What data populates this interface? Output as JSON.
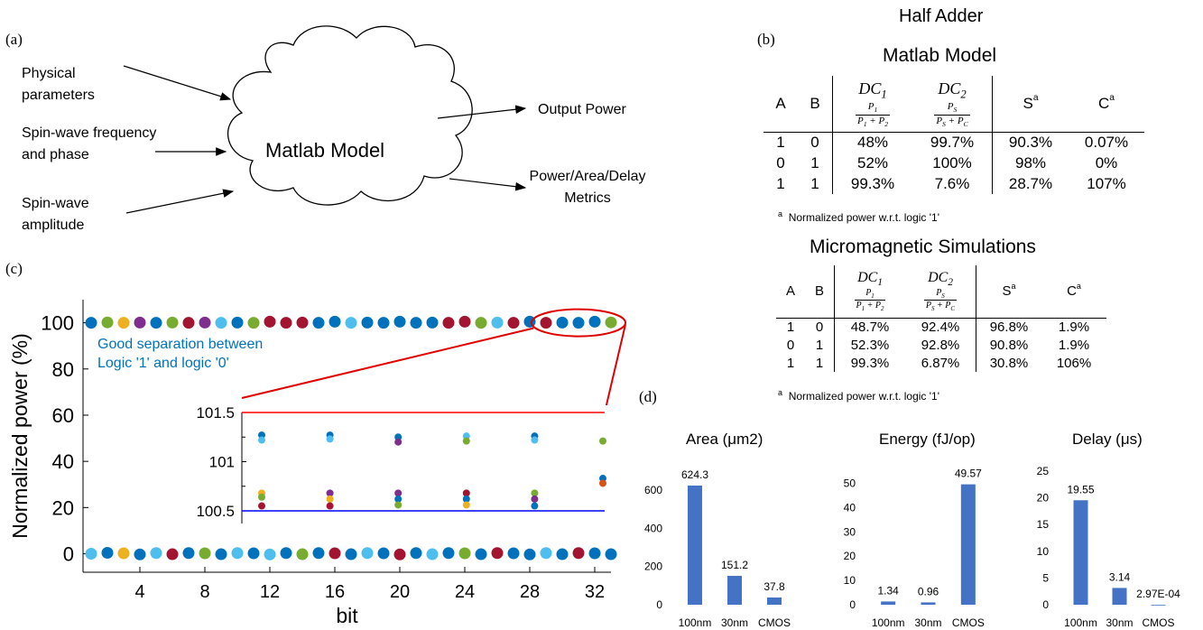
{
  "panels": {
    "a": "(a)",
    "b": "(b)",
    "c": "(c)",
    "d": "(d)"
  },
  "flow": {
    "inputs": [
      "Physical parameters",
      "Spin-wave frequency and phase",
      "Spin-wave amplitude"
    ],
    "input_lines": [
      [
        "Physical",
        "parameters"
      ],
      [
        "Spin-wave frequency",
        "and phase"
      ],
      [
        "Spin-wave",
        "amplitude"
      ]
    ],
    "center": "Matlab Model",
    "outputs": [
      "Output Power",
      "Power/Area/Delay Metrics"
    ],
    "output_lines": [
      [
        "Output Power"
      ],
      [
        "Power/Area/Delay",
        "Metrics"
      ]
    ]
  },
  "tables": {
    "header": "Half Adder",
    "matlab": {
      "title": "Matlab Model",
      "cols": [
        "A",
        "B",
        "DC",
        "DC",
        "S",
        "C"
      ],
      "sup": "a",
      "rows": [
        [
          "1",
          "0",
          "48%",
          "99.7%",
          "90.3%",
          "0.07%"
        ],
        [
          "0",
          "1",
          "52%",
          "100%",
          "98%",
          "0%"
        ],
        [
          "1",
          "1",
          "99.3%",
          "7.6%",
          "28.7%",
          "107%"
        ]
      ],
      "footnote": "Normalized power w.r.t. logic '1'"
    },
    "micromag": {
      "title": "Micromagnetic Simulations",
      "cols": [
        "A",
        "B",
        "DC",
        "DC",
        "S",
        "C"
      ],
      "sup": "a",
      "rows": [
        [
          "1",
          "0",
          "48.7%",
          "92.4%",
          "96.8%",
          "1.9%"
        ],
        [
          "0",
          "1",
          "52.3%",
          "92.8%",
          "90.8%",
          "1.9%"
        ],
        [
          "1",
          "1",
          "99.3%",
          "6.87%",
          "30.8%",
          "106%"
        ]
      ],
      "footnote": "Normalized power w.r.t. logic '1'"
    }
  },
  "chart_data": [
    {
      "type": "scatter",
      "xlabel": "bit",
      "ylabel": "Normalized power (%)",
      "xlim": [
        0.5,
        33
      ],
      "ylim": [
        -8,
        110
      ],
      "xticks": [
        4,
        8,
        12,
        16,
        20,
        24,
        28,
        32
      ],
      "yticks": [
        0,
        20,
        40,
        60,
        80,
        100
      ],
      "annotation": "Good separation between Logic '1' and logic '0'",
      "annotation_lines": [
        "Good separation between",
        "Logic '1' and logic '0'"
      ],
      "annotation_color": "#0072BD",
      "palette": [
        "#0072BD",
        "#D95319",
        "#EDB120",
        "#7E2F8E",
        "#77AC30",
        "#4DBEEE",
        "#A2142F"
      ],
      "high_points": [
        {
          "x": 1,
          "y": 100.6,
          "c": "#0072BD"
        },
        {
          "x": 2,
          "y": 100.8,
          "c": "#77AC30"
        },
        {
          "x": 3,
          "y": 100.6,
          "c": "#EDB120"
        },
        {
          "x": 4,
          "y": 100.7,
          "c": "#7E2F8E"
        },
        {
          "x": 5,
          "y": 100.6,
          "c": "#0072BD"
        },
        {
          "x": 6,
          "y": 100.7,
          "c": "#77AC30"
        },
        {
          "x": 7,
          "y": 100.6,
          "c": "#A2142F"
        },
        {
          "x": 8,
          "y": 100.7,
          "c": "#7E2F8E"
        },
        {
          "x": 9,
          "y": 100.6,
          "c": "#4DBEEE"
        },
        {
          "x": 10,
          "y": 100.7,
          "c": "#0072BD"
        },
        {
          "x": 11,
          "y": 100.6,
          "c": "#77AC30"
        },
        {
          "x": 12,
          "y": 101.2,
          "c": "#A2142F"
        },
        {
          "x": 13,
          "y": 100.6,
          "c": "#A2142F"
        },
        {
          "x": 14,
          "y": 100.7,
          "c": "#A2142F"
        },
        {
          "x": 15,
          "y": 100.6,
          "c": "#0072BD"
        },
        {
          "x": 16,
          "y": 101.2,
          "c": "#0072BD"
        },
        {
          "x": 17,
          "y": 100.6,
          "c": "#4DBEEE"
        },
        {
          "x": 18,
          "y": 100.7,
          "c": "#0072BD"
        },
        {
          "x": 19,
          "y": 100.6,
          "c": "#0072BD"
        },
        {
          "x": 20,
          "y": 101.2,
          "c": "#0072BD"
        },
        {
          "x": 21,
          "y": 100.6,
          "c": "#0072BD"
        },
        {
          "x": 22,
          "y": 100.7,
          "c": "#0072BD"
        },
        {
          "x": 23,
          "y": 100.6,
          "c": "#A2142F"
        },
        {
          "x": 24,
          "y": 101.2,
          "c": "#A2142F"
        },
        {
          "x": 25,
          "y": 100.6,
          "c": "#77AC30"
        },
        {
          "x": 26,
          "y": 100.7,
          "c": "#4DBEEE"
        },
        {
          "x": 27,
          "y": 100.6,
          "c": "#A2142F"
        },
        {
          "x": 28,
          "y": 101.2,
          "c": "#0072BD"
        },
        {
          "x": 29,
          "y": 100.6,
          "c": "#A2142F"
        },
        {
          "x": 30,
          "y": 100.7,
          "c": "#0072BD"
        },
        {
          "x": 31,
          "y": 100.6,
          "c": "#0072BD"
        },
        {
          "x": 32,
          "y": 101.2,
          "c": "#0072BD"
        },
        {
          "x": 33,
          "y": 100.8,
          "c": "#77AC30"
        }
      ],
      "low_points": [
        {
          "x": 1,
          "y": 0,
          "c": "#4DBEEE"
        },
        {
          "x": 2,
          "y": 0.4,
          "c": "#0072BD"
        },
        {
          "x": 3,
          "y": 0.2,
          "c": "#EDB120"
        },
        {
          "x": 4,
          "y": -0.3,
          "c": "#0072BD"
        },
        {
          "x": 5,
          "y": 0.3,
          "c": "#4DBEEE"
        },
        {
          "x": 6,
          "y": -0.2,
          "c": "#A2142F"
        },
        {
          "x": 7,
          "y": 0.3,
          "c": "#0072BD"
        },
        {
          "x": 8,
          "y": 0.2,
          "c": "#77AC30"
        },
        {
          "x": 9,
          "y": -0.2,
          "c": "#0072BD"
        },
        {
          "x": 10,
          "y": 0.3,
          "c": "#4DBEEE"
        },
        {
          "x": 11,
          "y": 0.2,
          "c": "#0072BD"
        },
        {
          "x": 12,
          "y": -0.3,
          "c": "#4DBEEE"
        },
        {
          "x": 13,
          "y": 0.3,
          "c": "#0072BD"
        },
        {
          "x": 14,
          "y": -0.2,
          "c": "#77AC30"
        },
        {
          "x": 15,
          "y": 0.3,
          "c": "#0072BD"
        },
        {
          "x": 16,
          "y": 0.2,
          "c": "#A2142F"
        },
        {
          "x": 17,
          "y": -0.2,
          "c": "#0072BD"
        },
        {
          "x": 18,
          "y": 0.3,
          "c": "#4DBEEE"
        },
        {
          "x": 19,
          "y": 0.2,
          "c": "#0072BD"
        },
        {
          "x": 20,
          "y": -0.3,
          "c": "#A2142F"
        },
        {
          "x": 21,
          "y": 0.3,
          "c": "#0072BD"
        },
        {
          "x": 22,
          "y": -0.2,
          "c": "#4DBEEE"
        },
        {
          "x": 23,
          "y": 0.3,
          "c": "#0072BD"
        },
        {
          "x": 24,
          "y": 0.2,
          "c": "#77AC30"
        },
        {
          "x": 25,
          "y": -0.2,
          "c": "#0072BD"
        },
        {
          "x": 26,
          "y": 0.3,
          "c": "#A2142F"
        },
        {
          "x": 27,
          "y": 0.2,
          "c": "#0072BD"
        },
        {
          "x": 28,
          "y": -0.3,
          "c": "#0072BD"
        },
        {
          "x": 29,
          "y": 0.3,
          "c": "#4DBEEE"
        },
        {
          "x": 30,
          "y": -0.2,
          "c": "#0072BD"
        },
        {
          "x": 31,
          "y": 0.3,
          "c": "#A2142F"
        },
        {
          "x": 32,
          "y": 0.2,
          "c": "#0072BD"
        },
        {
          "x": 33,
          "y": -0.2,
          "c": "#0072BD"
        }
      ]
    },
    {
      "type": "scatter",
      "role": "inset",
      "ylim": [
        100.5,
        101.5
      ],
      "yticks": [
        100.5,
        101,
        101.5
      ],
      "ytick_labels": [
        "100.5",
        "101",
        "101.5"
      ],
      "upper_line": {
        "y": 101.5,
        "color": "#FF0000"
      },
      "lower_line": {
        "y": 100.5,
        "color": "#0000FF"
      },
      "points": [
        {
          "x": 0,
          "y": 101.27,
          "c": "#0072BD"
        },
        {
          "x": 0,
          "y": 101.22,
          "c": "#4DBEEE"
        },
        {
          "x": 0,
          "y": 100.68,
          "c": "#EDB120"
        },
        {
          "x": 0,
          "y": 100.64,
          "c": "#77AC30"
        },
        {
          "x": 0,
          "y": 100.55,
          "c": "#A2142F"
        },
        {
          "x": 1,
          "y": 101.27,
          "c": "#0072BD"
        },
        {
          "x": 1,
          "y": 101.23,
          "c": "#4DBEEE"
        },
        {
          "x": 1,
          "y": 100.68,
          "c": "#7E2F8E"
        },
        {
          "x": 1,
          "y": 100.62,
          "c": "#EDB120"
        },
        {
          "x": 1,
          "y": 100.55,
          "c": "#A2142F"
        },
        {
          "x": 2,
          "y": 101.25,
          "c": "#0072BD"
        },
        {
          "x": 2,
          "y": 101.2,
          "c": "#7E2F8E"
        },
        {
          "x": 2,
          "y": 100.68,
          "c": "#7E2F8E"
        },
        {
          "x": 2,
          "y": 100.62,
          "c": "#0072BD"
        },
        {
          "x": 2,
          "y": 100.56,
          "c": "#77AC30"
        },
        {
          "x": 3,
          "y": 101.26,
          "c": "#4DBEEE"
        },
        {
          "x": 3,
          "y": 101.21,
          "c": "#77AC30"
        },
        {
          "x": 3,
          "y": 100.68,
          "c": "#A2142F"
        },
        {
          "x": 3,
          "y": 100.62,
          "c": "#0072BD"
        },
        {
          "x": 3,
          "y": 100.56,
          "c": "#EDB120"
        },
        {
          "x": 4,
          "y": 101.26,
          "c": "#0072BD"
        },
        {
          "x": 4,
          "y": 101.22,
          "c": "#4DBEEE"
        },
        {
          "x": 4,
          "y": 100.68,
          "c": "#77AC30"
        },
        {
          "x": 4,
          "y": 100.62,
          "c": "#7E2F8E"
        },
        {
          "x": 4,
          "y": 100.55,
          "c": "#0072BD"
        },
        {
          "x": 5,
          "y": 101.21,
          "c": "#77AC30"
        },
        {
          "x": 5,
          "y": 100.83,
          "c": "#0072BD"
        },
        {
          "x": 5,
          "y": 100.78,
          "c": "#D95319"
        }
      ]
    },
    {
      "type": "bar",
      "title": "Area (μm2)",
      "categories": [
        "100nm",
        "30nm",
        "CMOS"
      ],
      "values": [
        624.3,
        151.2,
        37.8
      ],
      "value_labels": [
        "624.3",
        "151.2",
        "37.8"
      ],
      "ylim": [
        0,
        700
      ],
      "yticks": [
        0,
        200,
        400,
        600
      ],
      "color": "#4472C4"
    },
    {
      "type": "bar",
      "title": "Energy (fJ/op)",
      "categories": [
        "100nm",
        "30nm",
        "CMOS"
      ],
      "values": [
        1.34,
        0.96,
        49.57
      ],
      "value_labels": [
        "1.34",
        "0.96",
        "49.57"
      ],
      "ylim": [
        0,
        55
      ],
      "yticks": [
        0,
        10,
        20,
        30,
        40,
        50
      ],
      "color": "#4472C4"
    },
    {
      "type": "bar",
      "title": "Delay (μs)",
      "categories": [
        "100nm",
        "30nm",
        "CMOS"
      ],
      "values": [
        19.55,
        3.14,
        0.000297
      ],
      "value_labels": [
        "19.55",
        "3.14",
        "2.97E-04"
      ],
      "ylim": [
        0,
        25
      ],
      "yticks": [
        0,
        5,
        10,
        15,
        20,
        25
      ],
      "color": "#4472C4"
    }
  ]
}
